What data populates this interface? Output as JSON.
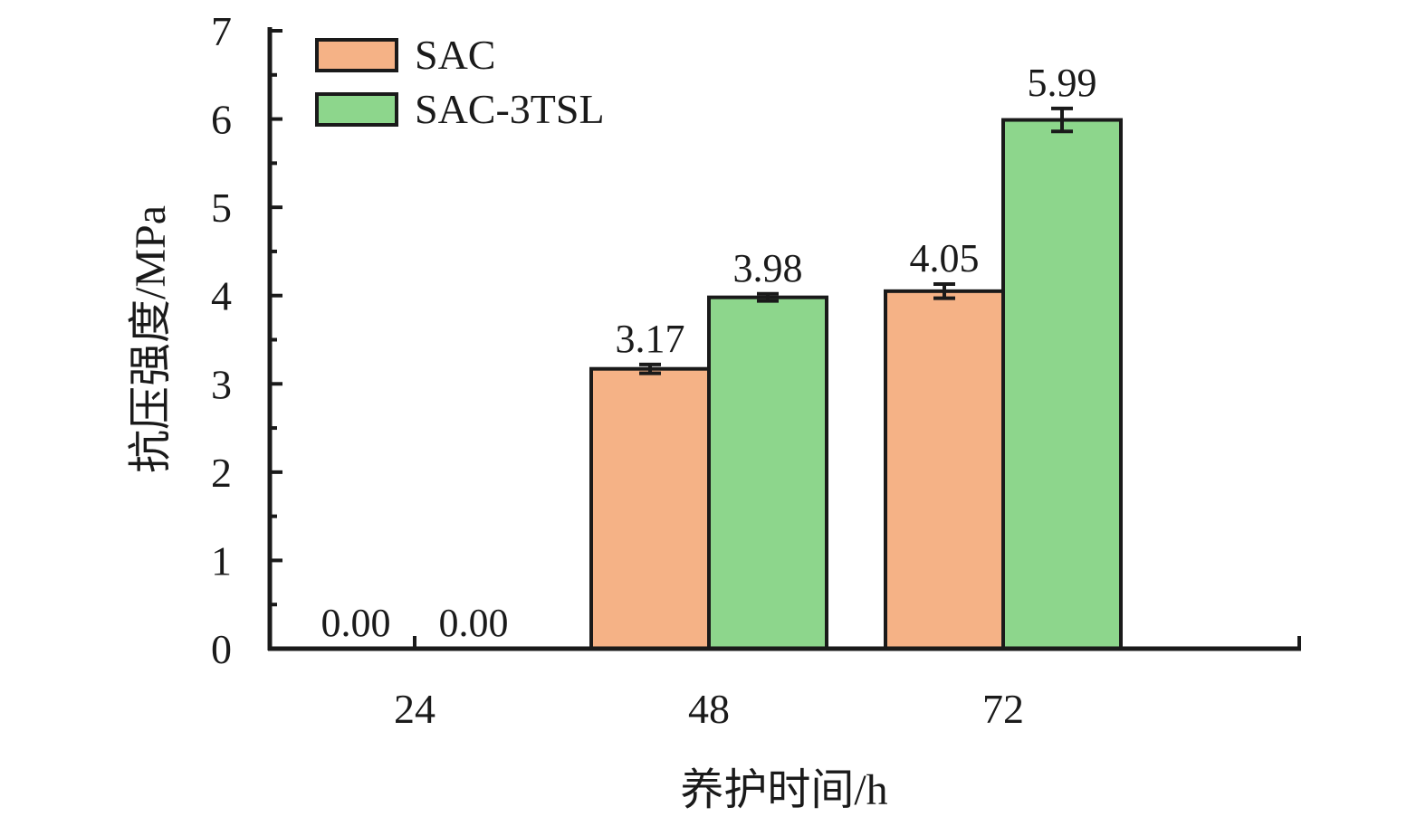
{
  "chart_data": {
    "type": "bar",
    "title": "",
    "xlabel": "养护时间/h",
    "ylabel": "抗压强度/MPa",
    "categories": [
      "24",
      "48",
      "72"
    ],
    "ylim": [
      0,
      7
    ],
    "yticks": [
      "0",
      "1",
      "2",
      "3",
      "4",
      "5",
      "6",
      "7"
    ],
    "grid": false,
    "legend_position": "top-left",
    "series": [
      {
        "name": "SAC",
        "color": "#F5B286",
        "values": [
          0.0,
          3.17,
          4.05
        ],
        "errors": [
          0,
          0.05,
          0.08
        ],
        "labels": [
          "0.00",
          "3.17",
          "4.05"
        ]
      },
      {
        "name": "SAC-3TSL",
        "color": "#8DD68C",
        "values": [
          0.0,
          3.98,
          5.99
        ],
        "errors": [
          0,
          0.04,
          0.13
        ],
        "labels": [
          "0.00",
          "3.98",
          "5.99"
        ]
      }
    ]
  }
}
